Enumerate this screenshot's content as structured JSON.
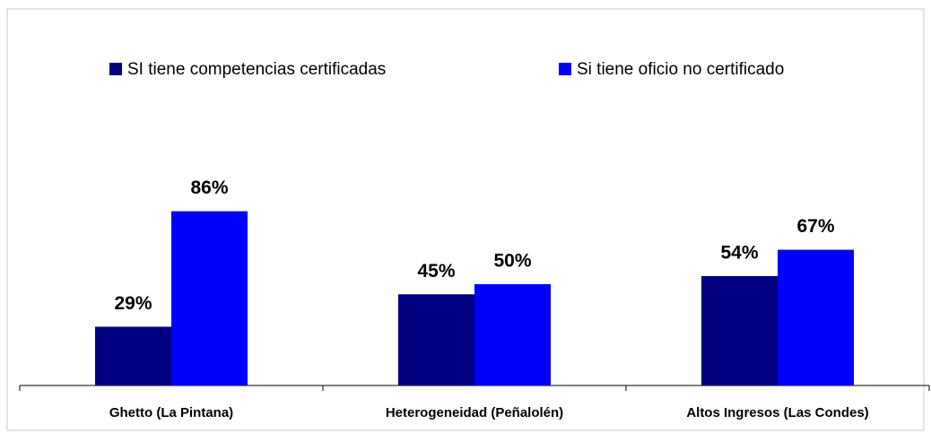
{
  "chart_data": {
    "type": "bar",
    "categories": [
      "Ghetto (La Pintana)",
      "Heterogeneidad (Peñalolén)",
      "Altos Ingresos (Las Condes)"
    ],
    "series": [
      {
        "name": "SI tiene competencias certificadas",
        "color": "#000080",
        "values": [
          29,
          45,
          54
        ],
        "value_labels": [
          "29%",
          "45%",
          "54%"
        ]
      },
      {
        "name": "Si tiene oficio no certificado",
        "color": "#0000ff",
        "values": [
          86,
          50,
          67
        ],
        "value_labels": [
          "86%",
          "50%",
          "67%"
        ]
      }
    ],
    "ylim": [
      0,
      100
    ]
  }
}
